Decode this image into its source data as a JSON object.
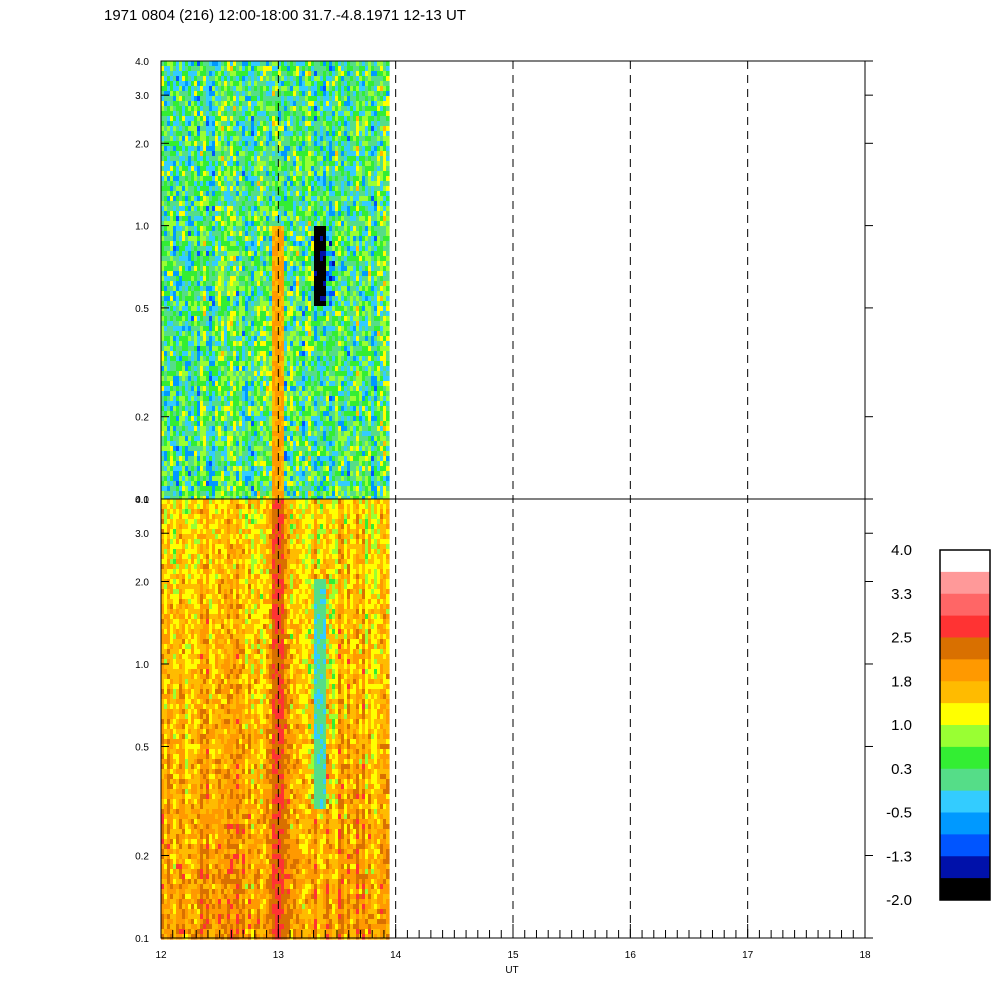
{
  "chart_data": {
    "type": "heatmap",
    "title": "1971 0804 (216) 12:00-18:00 31.7.-4.8.1971  12-13 UT",
    "xlabel": "UT",
    "ylabel": "",
    "x_range": [
      12,
      18
    ],
    "x_ticks": [
      "12",
      "13",
      "14",
      "15",
      "16",
      "17",
      "18"
    ],
    "x_minor_per_major": 10,
    "dashed_vlines": [
      13,
      14,
      15,
      16,
      17
    ],
    "data_end_x": 13.93,
    "y_scale": "log",
    "y_range": [
      0.1,
      4.0
    ],
    "y_ticks": [
      {
        "value": 0.1,
        "label": "0.1"
      },
      {
        "value": 0.2,
        "label": "0.2"
      },
      {
        "value": 0.5,
        "label": "0.5"
      },
      {
        "value": 1.0,
        "label": "1.0"
      },
      {
        "value": 2.0,
        "label": "2.0"
      },
      {
        "value": 3.0,
        "label": "3.0"
      },
      {
        "value": 4.0,
        "label": "4.0"
      }
    ],
    "panels": [
      {
        "id": "upper",
        "dominant_level_range": [
          -0.5,
          1.0
        ],
        "min_level": -2.0,
        "max_level": 2.5,
        "features": [
          {
            "x": 12.98,
            "y_range": [
              0.1,
              1.0
            ],
            "level": 1.8
          },
          {
            "x": 13.35,
            "y_range": [
              0.5,
              1.0
            ],
            "level": -1.8
          }
        ]
      },
      {
        "id": "lower",
        "dominant_level_range": [
          1.0,
          1.8
        ],
        "min_level": -0.5,
        "max_level": 2.5,
        "features": [
          {
            "x": 12.98,
            "y_range": [
              0.1,
              4.0
            ],
            "level": 2.5
          },
          {
            "x": 13.35,
            "y_range": [
              0.3,
              2.0
            ],
            "level": 0.0
          }
        ]
      }
    ],
    "colorbar": {
      "labels": [
        "4.0",
        "3.3",
        "2.5",
        "1.8",
        "1.0",
        "0.3",
        "-0.5",
        "-1.3",
        "-2.0"
      ],
      "colors": [
        "#ffffff",
        "#ff9999",
        "#ff6666",
        "#ff3333",
        "#d97000",
        "#ff9900",
        "#ffbb00",
        "#ffff00",
        "#99ff33",
        "#33ee33",
        "#55dd88",
        "#33ccff",
        "#0099ff",
        "#0055ff",
        "#0011aa",
        "#000000"
      ]
    }
  }
}
